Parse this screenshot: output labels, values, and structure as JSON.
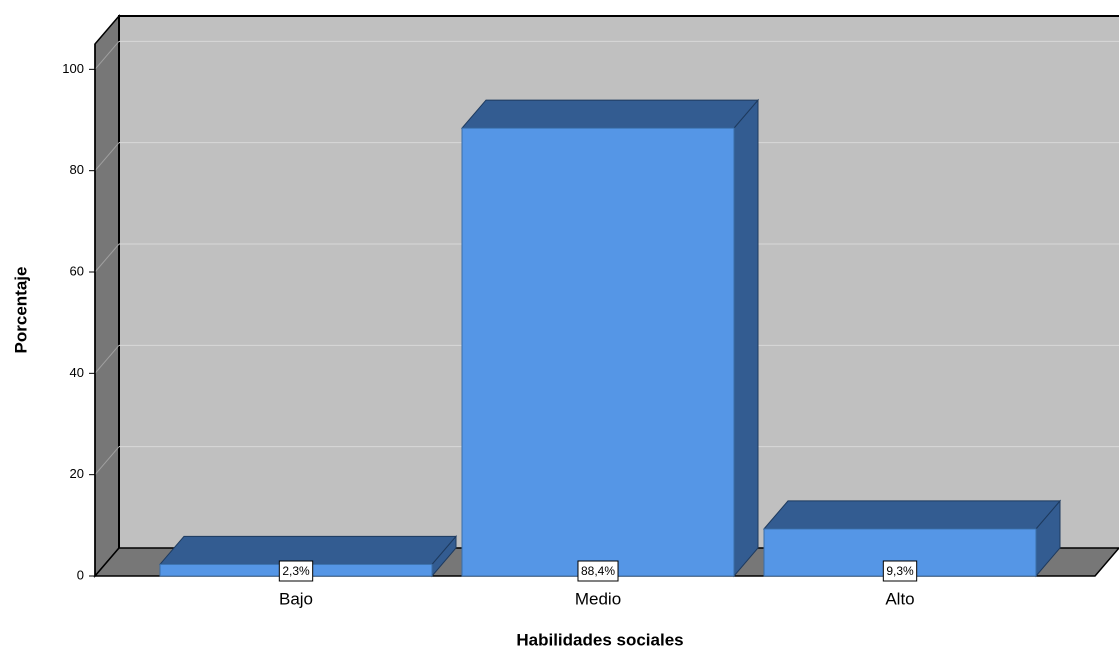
{
  "chart_data": {
    "type": "bar",
    "categories": [
      "Bajo",
      "Medio",
      "Alto"
    ],
    "values": [
      2.3,
      88.4,
      9.3
    ],
    "value_labels": [
      "2,3%",
      "88,4%",
      "9,3%"
    ],
    "color": "#5596e6",
    "xlabel": "Habilidades sociales",
    "ylabel": "Porcentaje",
    "ylim": [
      0,
      105
    ],
    "yticks": [
      0,
      20,
      40,
      60,
      80,
      100
    ],
    "grid": true
  }
}
